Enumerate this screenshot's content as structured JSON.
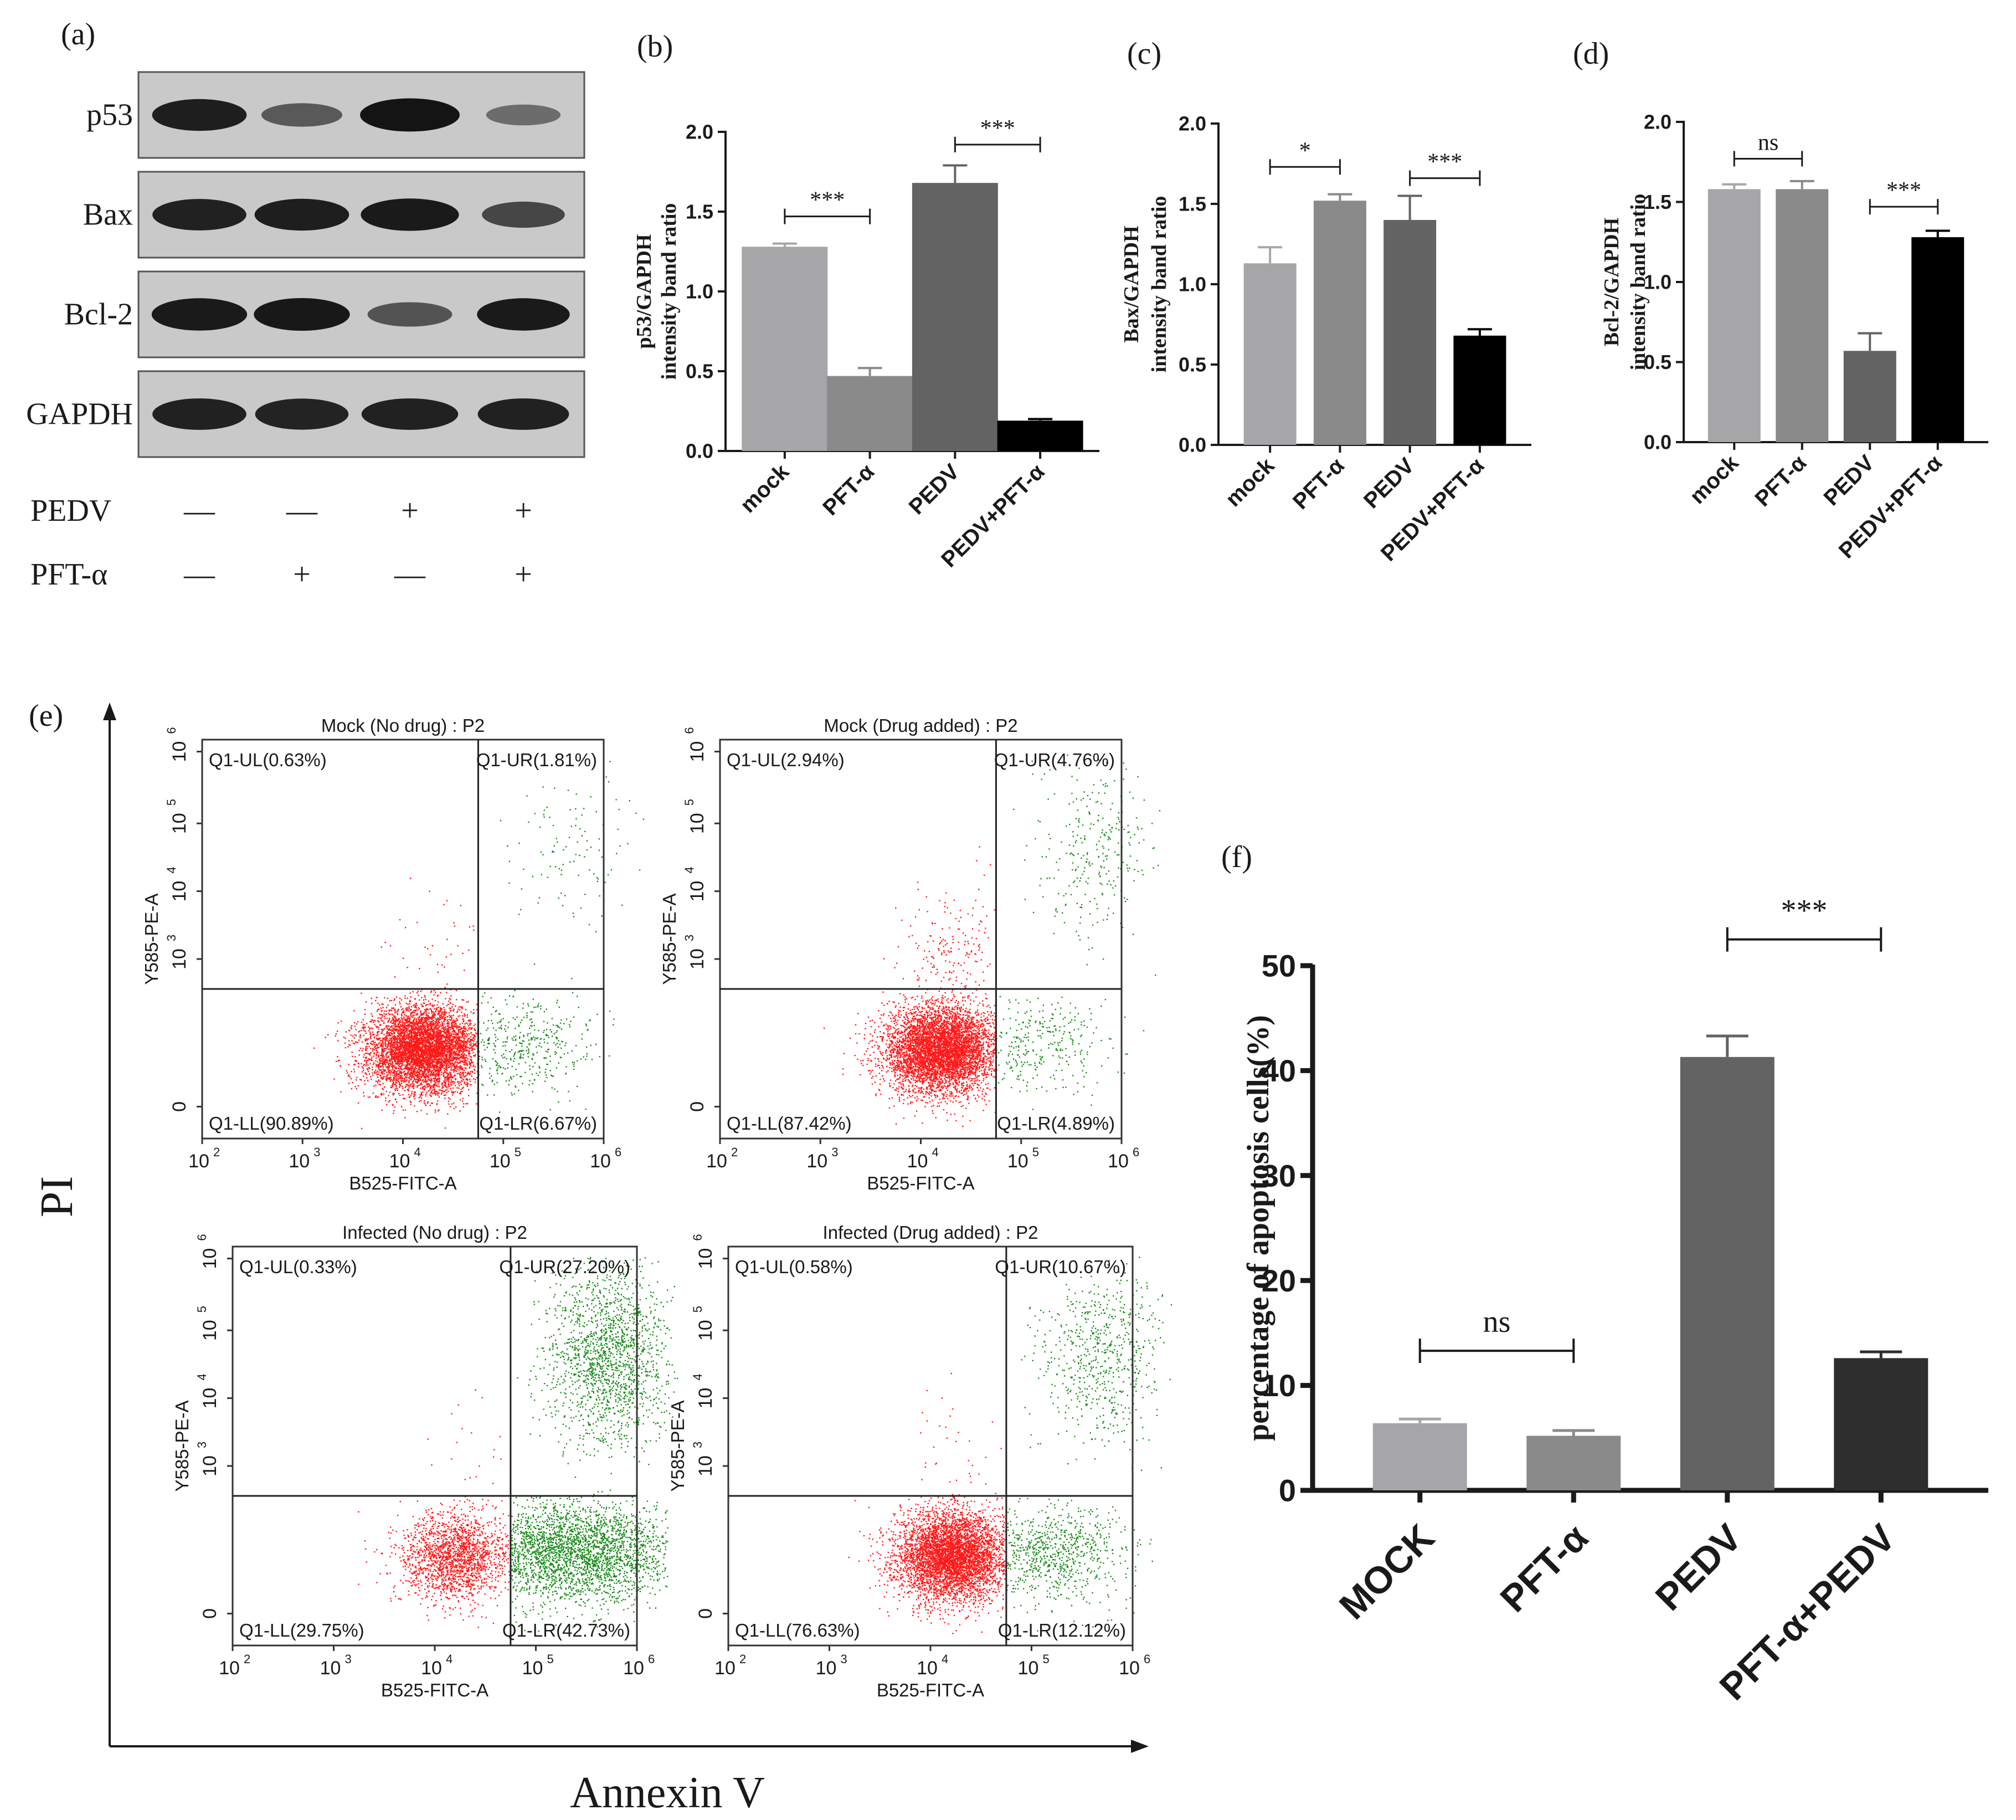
{
  "colors": {
    "blot_bg": "#c9c9c9",
    "band": "#141414",
    "axis": "#1a1a1a",
    "flow_red": "#ff1a1a",
    "flow_green": "#1a8c1a",
    "bar_mock": "#a6a6a8",
    "bar_pft": "#8a8a8a",
    "bar_pedv": "#636363",
    "bar_combo": "#000000",
    "bar_f_combo": "#2e2e2e"
  },
  "western_blot": {
    "panel_label": "(a)",
    "proteins": [
      "p53",
      "Bax",
      "Bcl-2",
      "GAPDH"
    ],
    "band_intensity": [
      [
        0.92,
        0.45,
        1.0,
        0.3
      ],
      [
        0.9,
        0.92,
        0.95,
        0.6
      ],
      [
        0.95,
        0.97,
        0.5,
        0.95
      ],
      [
        0.9,
        0.88,
        0.9,
        0.9
      ]
    ],
    "treatments": [
      {
        "name": "PEDV",
        "marks": [
          "—",
          "—",
          "+",
          "+"
        ]
      },
      {
        "name": "PFT-α",
        "marks": [
          "—",
          "+",
          "—",
          "+"
        ]
      }
    ]
  },
  "chart_data": [
    {
      "panel_label": "(b)",
      "type": "bar",
      "categories": [
        "mock",
        "PFT-α",
        "PEDV",
        "PEDV+PFT-α"
      ],
      "values": [
        1.28,
        0.47,
        1.68,
        0.19
      ],
      "errors": [
        0.02,
        0.05,
        0.11,
        0.01
      ],
      "ylabel_line1": "p53/GAPDH",
      "ylabel_line2": "intensity band ratio",
      "ylim": [
        0,
        2.0
      ],
      "yticks": [
        "0.0",
        "0.5",
        "1.0",
        "1.5",
        "2.0"
      ],
      "significance": [
        {
          "from": 0,
          "to": 1,
          "label": "***",
          "y": 1.47
        },
        {
          "from": 2,
          "to": 3,
          "label": "***",
          "y": 1.92
        }
      ]
    },
    {
      "panel_label": "(c)",
      "type": "bar",
      "categories": [
        "mock",
        "PFT-α",
        "PEDV",
        "PEDV+PFT-α"
      ],
      "values": [
        1.13,
        1.52,
        1.4,
        0.68
      ],
      "errors": [
        0.1,
        0.04,
        0.15,
        0.04
      ],
      "ylabel_line1": "Bax/GAPDH",
      "ylabel_line2": "intensity band ratio",
      "ylim": [
        0,
        2.0
      ],
      "yticks": [
        "0.0",
        "0.5",
        "1.0",
        "1.5",
        "2.0"
      ],
      "significance": [
        {
          "from": 0,
          "to": 1,
          "label": "*",
          "y": 1.73
        },
        {
          "from": 2,
          "to": 3,
          "label": "***",
          "y": 1.66
        }
      ]
    },
    {
      "panel_label": "(d)",
      "type": "bar",
      "categories": [
        "mock",
        "PFT-α",
        "PEDV",
        "PEDV+PFT-α"
      ],
      "values": [
        1.58,
        1.58,
        0.57,
        1.28
      ],
      "errors": [
        0.03,
        0.05,
        0.11,
        0.04
      ],
      "ylabel_line1": "Bcl-2/GAPDH",
      "ylabel_line2": "intensity band ratio",
      "ylim": [
        0,
        2.0
      ],
      "yticks": [
        "0.0",
        "0.5",
        "1.0",
        "1.5",
        "2.0"
      ],
      "significance": [
        {
          "from": 0,
          "to": 1,
          "label": "ns",
          "y": 1.77
        },
        {
          "from": 2,
          "to": 3,
          "label": "***",
          "y": 1.47
        }
      ]
    },
    {
      "panel_label": "(f)",
      "type": "bar",
      "categories": [
        "MOCK",
        "PFT-α",
        "PEDV",
        "PFT-α+PEDV"
      ],
      "values": [
        6.4,
        5.2,
        41.3,
        12.6
      ],
      "errors": [
        0.4,
        0.5,
        2.0,
        0.6
      ],
      "ylabel": "percentage of apoptosis cells(%)",
      "ylim": [
        0,
        50
      ],
      "yticks": [
        "0",
        "10",
        "20",
        "30",
        "40",
        "50"
      ],
      "significance": [
        {
          "from": 0,
          "to": 1,
          "label": "ns",
          "y": 13.3
        },
        {
          "from": 2,
          "to": 3,
          "label": "***",
          "y": 52.5
        }
      ]
    }
  ],
  "flow": {
    "panel_label": "(e)",
    "y_axis_label": "PI",
    "x_axis_label": "Annexin V",
    "plot_xlabel": "B525-FITC-A",
    "plot_ylabel": "Y585-PE-A",
    "x_ticks": [
      {
        "base": "10",
        "exp": "2"
      },
      {
        "base": "10",
        "exp": "3"
      },
      {
        "base": "10",
        "exp": "4"
      },
      {
        "base": "10",
        "exp": "5"
      },
      {
        "base": "10",
        "exp": "6"
      }
    ],
    "y_ticks": [
      {
        "base": "0",
        "exp": ""
      },
      {
        "base": "10",
        "exp": "3"
      },
      {
        "base": "10",
        "exp": "4"
      },
      {
        "base": "10",
        "exp": "5"
      },
      {
        "base": "10",
        "exp": "6"
      }
    ],
    "plots": [
      {
        "title": "Mock (No drug) : P2",
        "ul": "Q1-UL(0.63%)",
        "ur": "Q1-UR(1.81%)",
        "ll": "Q1-LL(90.89%)",
        "lr": "Q1-LR(6.67%)",
        "cells": {
          "ll": 0.9089,
          "lr": 0.0667,
          "ul": 0.0063,
          "ur": 0.0181
        }
      },
      {
        "title": "Mock (Drug added) : P2",
        "ul": "Q1-UL(2.94%)",
        "ur": "Q1-UR(4.76%)",
        "ll": "Q1-LL(87.42%)",
        "lr": "Q1-LR(4.89%)",
        "cells": {
          "ll": 0.8742,
          "lr": 0.0489,
          "ul": 0.0294,
          "ur": 0.0476
        }
      },
      {
        "title": "Infected (No drug) : P2",
        "ul": "Q1-UL(0.33%)",
        "ur": "Q1-UR(27.20%)",
        "ll": "Q1-LL(29.75%)",
        "lr": "Q1-LR(42.73%)",
        "cells": {
          "ll": 0.2975,
          "lr": 0.4273,
          "ul": 0.0033,
          "ur": 0.272
        }
      },
      {
        "title": "Infected (Drug added) : P2",
        "ul": "Q1-UL(0.58%)",
        "ur": "Q1-UR(10.67%)",
        "ll": "Q1-LL(76.63%)",
        "lr": "Q1-LR(12.12%)",
        "cells": {
          "ll": 0.7663,
          "lr": 0.1212,
          "ul": 0.0058,
          "ur": 0.1067
        }
      }
    ]
  }
}
